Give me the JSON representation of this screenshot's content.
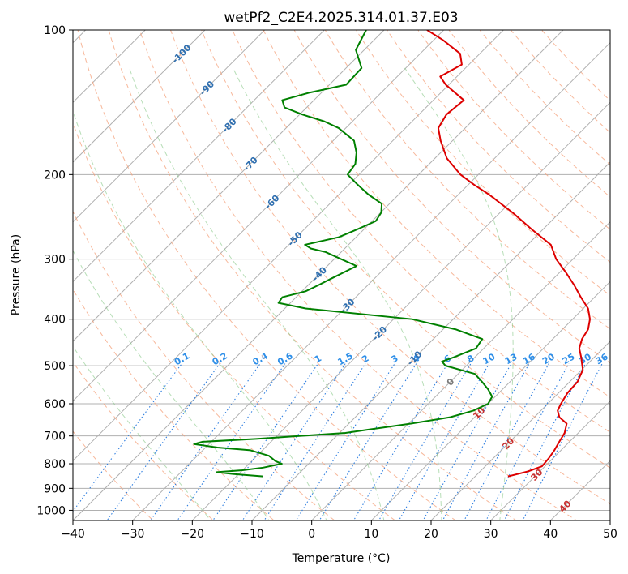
{
  "chart_data": {
    "type": "skew-t",
    "title": "wetPf2_C2E4.2025.314.01.37.E03",
    "xlabel": "Temperature (°C)",
    "ylabel": "Pressure (hPa)",
    "xlim": [
      -40,
      50
    ],
    "ylim": [
      1050,
      100
    ],
    "y_scale": "log",
    "x_ticks": [
      -40,
      -30,
      -20,
      -10,
      0,
      10,
      20,
      30,
      40,
      50
    ],
    "y_ticks": [
      100,
      200,
      300,
      400,
      500,
      600,
      700,
      800,
      900,
      1000
    ],
    "grid": true,
    "skew_degrees": 45,
    "isotherms": [
      -150,
      -140,
      -130,
      -120,
      -110,
      -100,
      -90,
      -80,
      -70,
      -60,
      -50,
      -40,
      -30,
      -20,
      -10,
      0,
      10,
      20,
      30,
      40,
      50
    ],
    "dry_adiabats_C": [
      -30,
      -20,
      -10,
      0,
      10,
      20,
      30,
      40,
      50,
      60,
      70,
      80,
      90,
      100,
      110,
      120,
      130,
      140,
      150,
      160,
      170
    ],
    "moist_adiabats_C": [
      -20,
      -10,
      0,
      10,
      20,
      30
    ],
    "mixing_ratio_labels": [
      "0.1",
      "0.2",
      "0.4",
      "0.6",
      "1",
      "1.5",
      "2",
      "3",
      "4",
      "6",
      "8",
      "10",
      "13",
      "16",
      "20",
      "25",
      "30",
      "36"
    ],
    "mixing_ratio_values": [
      0.1,
      0.2,
      0.4,
      0.6,
      1,
      1.5,
      2,
      3,
      4,
      6,
      8,
      10,
      13,
      16,
      20,
      25,
      30,
      36
    ],
    "mixing_ratio_label_pressure": 490,
    "cold_isotherm_labels": [
      {
        "text": "-100",
        "value": -100,
        "p": 112
      },
      {
        "text": "-90",
        "value": -90,
        "p": 132
      },
      {
        "text": "-80",
        "value": -80,
        "p": 158
      },
      {
        "text": "-70",
        "value": -70,
        "p": 190
      },
      {
        "text": "-60",
        "value": -60,
        "p": 228
      },
      {
        "text": "-50",
        "value": -50,
        "p": 272
      },
      {
        "text": "-40",
        "value": -40,
        "p": 322
      },
      {
        "text": "-30",
        "value": -30,
        "p": 375
      },
      {
        "text": "-20",
        "value": -20,
        "p": 428
      },
      {
        "text": "-10",
        "value": -10,
        "p": 482
      }
    ],
    "warm_isotherm_labels": [
      {
        "text": "0",
        "value": 0,
        "p": 540
      },
      {
        "text": "10",
        "value": 10,
        "p": 627
      },
      {
        "text": "20",
        "value": 20,
        "p": 726
      },
      {
        "text": "30",
        "value": 30,
        "p": 843
      },
      {
        "text": "40",
        "value": 40,
        "p": 980
      }
    ],
    "series": [
      {
        "name": "",
        "color": "#dd0000",
        "points": [
          [
            850,
            25.5
          ],
          [
            830,
            28.0
          ],
          [
            810,
            29.5
          ],
          [
            780,
            29.3
          ],
          [
            750,
            28.9
          ],
          [
            720,
            28.3
          ],
          [
            690,
            27.7
          ],
          [
            660,
            26.5
          ],
          [
            640,
            24.2
          ],
          [
            620,
            22.8
          ],
          [
            600,
            22.2
          ],
          [
            570,
            21.5
          ],
          [
            540,
            21.3
          ],
          [
            510,
            20.2
          ],
          [
            480,
            17.8
          ],
          [
            460,
            16.0
          ],
          [
            440,
            14.9
          ],
          [
            420,
            14.3
          ],
          [
            400,
            12.9
          ],
          [
            380,
            10.8
          ],
          [
            360,
            7.7
          ],
          [
            340,
            4.6
          ],
          [
            320,
            1.1
          ],
          [
            300,
            -2.8
          ],
          [
            280,
            -6.1
          ],
          [
            260,
            -11.9
          ],
          [
            240,
            -17.9
          ],
          [
            220,
            -24.9
          ],
          [
            210,
            -29.0
          ],
          [
            200,
            -33.0
          ],
          [
            185,
            -38.0
          ],
          [
            170,
            -42.0
          ],
          [
            160,
            -44.5
          ],
          [
            150,
            -45.4
          ],
          [
            140,
            -44.9
          ],
          [
            130,
            -50.5
          ],
          [
            125,
            -52.8
          ],
          [
            118,
            -51.2
          ],
          [
            112,
            -53.3
          ],
          [
            105,
            -58.4
          ],
          [
            100,
            -62.8
          ]
        ]
      },
      {
        "name": "",
        "color": "#008000",
        "points": [
          [
            850,
            -15.5
          ],
          [
            840,
            -21.0
          ],
          [
            833,
            -24.0
          ],
          [
            825,
            -20.0
          ],
          [
            815,
            -17.0
          ],
          [
            800,
            -14.5
          ],
          [
            790,
            -16.0
          ],
          [
            770,
            -18.0
          ],
          [
            750,
            -22.0
          ],
          [
            740,
            -28.0
          ],
          [
            728,
            -32.5
          ],
          [
            720,
            -31.5
          ],
          [
            710,
            -23.0
          ],
          [
            700,
            -16.0
          ],
          [
            690,
            -9.0
          ],
          [
            680,
            -6.0
          ],
          [
            660,
            0.4
          ],
          [
            640,
            5.9
          ],
          [
            620,
            8.7
          ],
          [
            600,
            10.0
          ],
          [
            580,
            9.5
          ],
          [
            560,
            7.6
          ],
          [
            540,
            5.3
          ],
          [
            520,
            2.8
          ],
          [
            500,
            -3.5
          ],
          [
            490,
            -4.8
          ],
          [
            480,
            -3.5
          ],
          [
            460,
            -1.3
          ],
          [
            440,
            -1.8
          ],
          [
            420,
            -7.9
          ],
          [
            400,
            -16.9
          ],
          [
            380,
            -36.5
          ],
          [
            370,
            -42.0
          ],
          [
            360,
            -42.3
          ],
          [
            350,
            -39.4
          ],
          [
            340,
            -38.3
          ],
          [
            330,
            -37.3
          ],
          [
            310,
            -35.1
          ],
          [
            300,
            -38.8
          ],
          [
            290,
            -42.6
          ],
          [
            285,
            -45.7
          ],
          [
            280,
            -47.3
          ],
          [
            270,
            -42.9
          ],
          [
            260,
            -41.1
          ],
          [
            250,
            -39.4
          ],
          [
            240,
            -39.9
          ],
          [
            230,
            -41.3
          ],
          [
            220,
            -45.1
          ],
          [
            210,
            -48.5
          ],
          [
            200,
            -51.9
          ],
          [
            190,
            -52.4
          ],
          [
            180,
            -54.1
          ],
          [
            170,
            -56.5
          ],
          [
            160,
            -61.2
          ],
          [
            155,
            -64.7
          ],
          [
            150,
            -69.5
          ],
          [
            145,
            -73.7
          ],
          [
            140,
            -75.3
          ],
          [
            135,
            -72.0
          ],
          [
            130,
            -67.2
          ],
          [
            120,
            -67.4
          ],
          [
            110,
            -71.4
          ],
          [
            100,
            -73.0
          ]
        ]
      }
    ]
  }
}
